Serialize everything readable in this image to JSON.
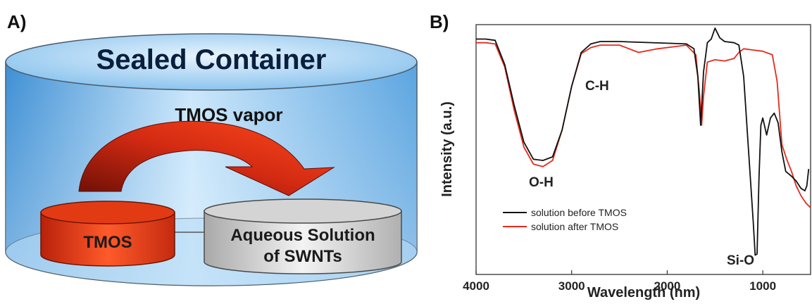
{
  "panel_a": {
    "label": "A)",
    "container_title": "Sealed Container",
    "vapor_label": "TMOS vapor",
    "source_label": "TMOS",
    "target_label_line1": "Aqueous Solution",
    "target_label_line2": "of SWNTs",
    "colors": {
      "container": "#8fc6f0",
      "arrow": "#c0200e",
      "tmos": "#e03a12",
      "solution": "#c9c9c9"
    }
  },
  "panel_b": {
    "label": "B)",
    "peaks": {
      "oh": "O-H",
      "ch": "C-H",
      "sio": "Si-O"
    }
  },
  "chart_data": {
    "type": "line",
    "title": "",
    "xlabel": "Wavelength (nm)",
    "ylabel": "Intensity (a.u.)",
    "xlim": [
      4000,
      500
    ],
    "ylim": [
      0,
      1
    ],
    "xticks": [
      4000,
      3000,
      2000,
      1000
    ],
    "yticks_shown": false,
    "legend_position": "bottom-left",
    "series": [
      {
        "name": "solution before TMOS",
        "color": "#111111",
        "points": [
          [
            4000,
            0.955
          ],
          [
            3900,
            0.955
          ],
          [
            3800,
            0.95
          ],
          [
            3700,
            0.85
          ],
          [
            3600,
            0.68
          ],
          [
            3500,
            0.53
          ],
          [
            3400,
            0.46
          ],
          [
            3300,
            0.455
          ],
          [
            3200,
            0.47
          ],
          [
            3100,
            0.58
          ],
          [
            3000,
            0.76
          ],
          [
            2900,
            0.9
          ],
          [
            2800,
            0.935
          ],
          [
            2700,
            0.945
          ],
          [
            2500,
            0.945
          ],
          [
            2300,
            0.942
          ],
          [
            2000,
            0.938
          ],
          [
            1800,
            0.935
          ],
          [
            1720,
            0.915
          ],
          [
            1680,
            0.8
          ],
          [
            1650,
            0.6
          ],
          [
            1620,
            0.82
          ],
          [
            1580,
            0.94
          ],
          [
            1540,
            0.955
          ],
          [
            1500,
            1.0
          ],
          [
            1450,
            0.96
          ],
          [
            1400,
            0.945
          ],
          [
            1300,
            0.94
          ],
          [
            1250,
            0.93
          ],
          [
            1200,
            0.8
          ],
          [
            1150,
            0.5
          ],
          [
            1100,
            0.2
          ],
          [
            1080,
            0.065
          ],
          [
            1060,
            0.07
          ],
          [
            1040,
            0.38
          ],
          [
            1020,
            0.6
          ],
          [
            1000,
            0.63
          ],
          [
            960,
            0.56
          ],
          [
            920,
            0.63
          ],
          [
            880,
            0.65
          ],
          [
            840,
            0.61
          ],
          [
            800,
            0.49
          ],
          [
            760,
            0.41
          ],
          [
            700,
            0.39
          ],
          [
            650,
            0.37
          ],
          [
            600,
            0.34
          ],
          [
            560,
            0.33
          ],
          [
            540,
            0.35
          ],
          [
            520,
            0.42
          ]
        ]
      },
      {
        "name": "solution after TMOS",
        "color": "#e52a1b",
        "points": [
          [
            4000,
            0.94
          ],
          [
            3900,
            0.94
          ],
          [
            3800,
            0.935
          ],
          [
            3700,
            0.84
          ],
          [
            3600,
            0.66
          ],
          [
            3500,
            0.51
          ],
          [
            3400,
            0.44
          ],
          [
            3300,
            0.43
          ],
          [
            3200,
            0.455
          ],
          [
            3100,
            0.58
          ],
          [
            3000,
            0.76
          ],
          [
            2900,
            0.895
          ],
          [
            2800,
            0.92
          ],
          [
            2700,
            0.93
          ],
          [
            2500,
            0.93
          ],
          [
            2300,
            0.9
          ],
          [
            2100,
            0.915
          ],
          [
            1900,
            0.925
          ],
          [
            1800,
            0.93
          ],
          [
            1700,
            0.89
          ],
          [
            1660,
            0.72
          ],
          [
            1640,
            0.6
          ],
          [
            1620,
            0.72
          ],
          [
            1580,
            0.86
          ],
          [
            1500,
            0.87
          ],
          [
            1400,
            0.865
          ],
          [
            1300,
            0.875
          ],
          [
            1250,
            0.9
          ],
          [
            1200,
            0.915
          ],
          [
            1100,
            0.91
          ],
          [
            1000,
            0.905
          ],
          [
            900,
            0.89
          ],
          [
            850,
            0.78
          ],
          [
            800,
            0.52
          ],
          [
            750,
            0.46
          ],
          [
            700,
            0.41
          ],
          [
            650,
            0.35
          ],
          [
            600,
            0.31
          ],
          [
            550,
            0.28
          ],
          [
            500,
            0.26
          ]
        ]
      }
    ],
    "annotations": [
      "O-H",
      "C-H",
      "Si-O"
    ]
  }
}
